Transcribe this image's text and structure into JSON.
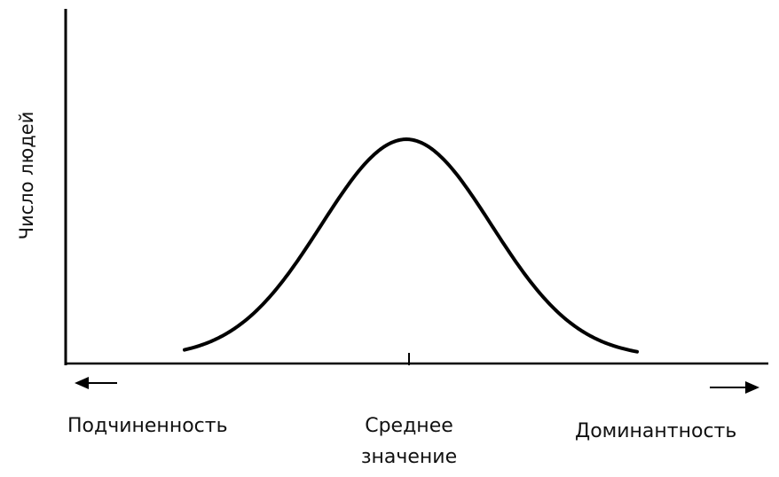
{
  "chart_data": {
    "type": "line",
    "ylabel": "Число людей",
    "x_labels": {
      "left": "Подчиненность",
      "center": [
        "Среднее",
        "значение"
      ],
      "right": "Доминантность"
    },
    "curve": "normal-distribution",
    "mean_marker": true,
    "arrows": {
      "left": true,
      "right": true
    },
    "grid": false,
    "line_color": "#000000"
  }
}
